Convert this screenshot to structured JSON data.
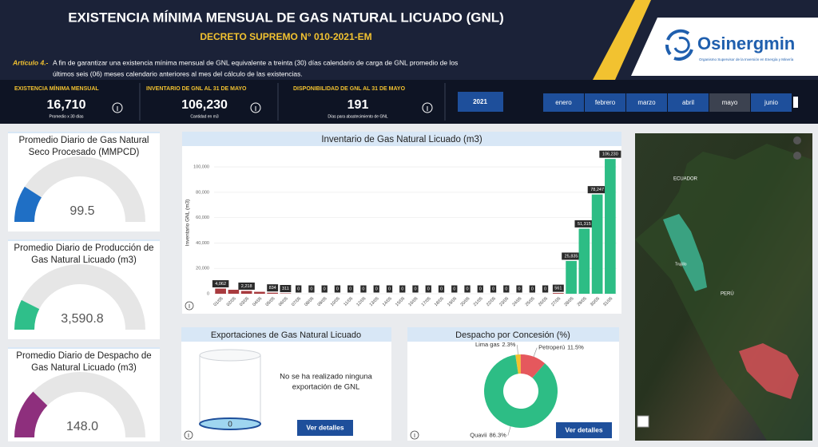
{
  "header": {
    "title": "EXISTENCIA MÍNIMA MENSUAL DE GAS NATURAL LICUADO (GNL)",
    "subtitle": "DECRETO SUPREMO N° 010-2021-EM",
    "article_label": "Artículo 4.-",
    "article_lines": [
      "A fin de garantizar una existencia mínima mensual de GNL equivalente a treinta (30) días calendario de carga de GNL  promedio de los",
      "últimos seis (06) meses calendario anteriores al mes del cálculo de las existencias."
    ],
    "logo": "Osinergmin",
    "logo_tagline": "Organismo Supervisor de la Inversión en Energía y Minería"
  },
  "kpis": [
    {
      "label": "EXISTENCIA MÍNIMA MENSUAL",
      "value": "16,710",
      "note": "Promedio x 30 días"
    },
    {
      "label": "INVENTARIO DE GNL AL 31 DE MAYO",
      "value": "106,230",
      "note": "Cantidad en m3"
    },
    {
      "label": "DISPONIBILIDAD DE GNL AL 31 DE MAYO",
      "value": "191",
      "note": "Días para abastecimiento de GNL"
    }
  ],
  "filters": {
    "year": "2021",
    "months": [
      "enero",
      "febrero",
      "marzo",
      "abril",
      "mayo",
      "junio"
    ],
    "selected": "mayo"
  },
  "exports": {
    "title": "Exportaciones de Gas Natural Licuado",
    "message": [
      "No se ha realizado ninguna",
      "exportación de GNL"
    ],
    "value": 0,
    "button": "Ver detalles"
  },
  "pie_button": "Ver detalles",
  "map": {
    "labels": [
      "ECUADOR",
      "PERÚ",
      "Trujillo"
    ]
  },
  "chart_data": [
    {
      "type": "gauge",
      "title": [
        "Promedio Diario de Gas Natural",
        "Seco Procesado (MMPCD)"
      ],
      "value": 99.5,
      "ylim": [
        0,
        550
      ],
      "color": "#1f6fc5"
    },
    {
      "type": "gauge",
      "title": [
        "Promedio Diario de Producción de",
        "Gas Natural Licuado (m3)"
      ],
      "value": 3590.8,
      "value_label": "3,590.8",
      "ylim": [
        0,
        24000
      ],
      "color": "#2fbf8a"
    },
    {
      "type": "gauge",
      "title": [
        "Promedio Diario de Despacho de",
        "Gas Natural Licuado (m3)"
      ],
      "value": 148,
      "value_label": "148.0",
      "ylim": [
        0,
        600
      ],
      "color": "#8e2f7d"
    },
    {
      "type": "bar",
      "title": "Inventario de Gas Natural Licuado (m3)",
      "y_label": "Inventario GNL (m3)",
      "categories": [
        "01/05",
        "02/05",
        "03/05",
        "04/05",
        "05/05",
        "06/05",
        "07/05",
        "08/05",
        "09/05",
        "10/05",
        "11/05",
        "12/05",
        "13/05",
        "14/05",
        "15/05",
        "16/05",
        "17/05",
        "18/05",
        "19/05",
        "20/05",
        "21/05",
        "22/05",
        "23/05",
        "24/05",
        "25/05",
        "26/05",
        "27/05",
        "28/05",
        "29/05",
        "30/05",
        "31/05"
      ],
      "values": [
        4062,
        3140,
        2218,
        1526,
        834,
        311,
        0,
        0,
        0,
        0,
        0,
        0,
        0,
        0,
        0,
        0,
        0,
        0,
        0,
        0,
        0,
        0,
        0,
        0,
        0,
        0,
        561,
        25835,
        51315,
        78247,
        106230
      ],
      "value_labels": [
        "4,062",
        null,
        "2,218",
        null,
        "834",
        "311",
        "0",
        "0",
        "0",
        "0",
        "0",
        "0",
        "0",
        "0",
        "0",
        "0",
        "0",
        "0",
        "0",
        "0",
        "0",
        "0",
        "0",
        "0",
        "0",
        "0",
        "561",
        "25,835",
        "51,315",
        "78,247",
        "106,230"
      ],
      "colors": [
        "#a83a3e",
        "#a83a3e",
        "#a83a3e",
        "#a83a3e",
        "#a83a3e",
        "#a83a3e",
        "#a83a3e",
        "#a83a3e",
        "#a83a3e",
        "#a83a3e",
        "#a83a3e",
        "#a83a3e",
        "#a83a3e",
        "#a83a3e",
        "#a83a3e",
        "#a83a3e",
        "#a83a3e",
        "#a83a3e",
        "#a83a3e",
        "#a83a3e",
        "#a83a3e",
        "#a83a3e",
        "#a83a3e",
        "#a83a3e",
        "#a83a3e",
        "#a83a3e",
        "#a83a3e",
        "#2dbd85",
        "#2dbd85",
        "#2dbd85",
        "#2dbd85"
      ],
      "ylim": [
        0,
        112000
      ],
      "yticks": [
        0,
        {
          "value": 20000,
          "label": "20,000"
        },
        {
          "value": 40000,
          "label": "40,000"
        },
        {
          "value": 60000,
          "label": "60,000"
        },
        {
          "value": 80000,
          "label": "80,000"
        },
        {
          "value": 100000,
          "label": "100,000"
        }
      ],
      "grid": true
    },
    {
      "type": "pie",
      "title": "Despacho por Concesión (%)",
      "donut": true,
      "categories": [
        "Lima gas",
        "Petroperú",
        "Quavii"
      ],
      "values": [
        2.3,
        11.5,
        86.3
      ],
      "value_labels": [
        "2.3%",
        "11.5%",
        "86.3%"
      ],
      "colors": [
        "#f2c12e",
        "#e5585d",
        "#2dbd85"
      ]
    }
  ]
}
